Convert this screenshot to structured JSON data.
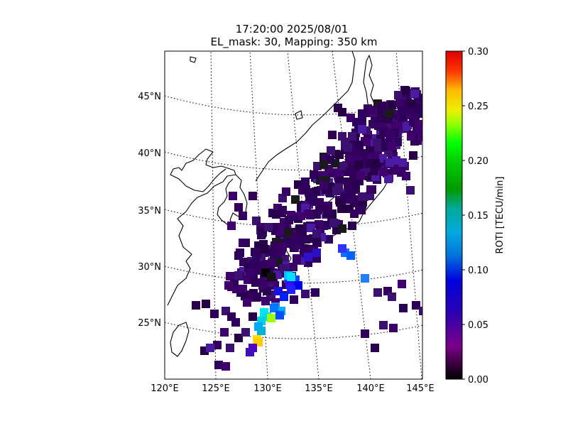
{
  "title": {
    "line1": "17:20:00 2025/08/01",
    "line2": "EL_mask: 30, Mapping: 350 km"
  },
  "map": {
    "lat_labels": [
      "45°N",
      "40°N",
      "35°N",
      "30°N",
      "25°N"
    ],
    "lon_labels": [
      "120°E",
      "125°E",
      "130°E",
      "135°E",
      "140°E",
      "145°E"
    ],
    "extent_lon": [
      120,
      145
    ],
    "extent_lat": [
      20,
      49
    ],
    "projection": "conic",
    "graticule": "dotted"
  },
  "colorbar": {
    "label": "ROTI [TECU/min]",
    "ticks": [
      "0.30",
      "0.25",
      "0.20",
      "0.15",
      "0.10",
      "0.05",
      "0.00"
    ],
    "range": [
      0,
      0.3
    ],
    "colormap": "nipy_spectral"
  }
}
